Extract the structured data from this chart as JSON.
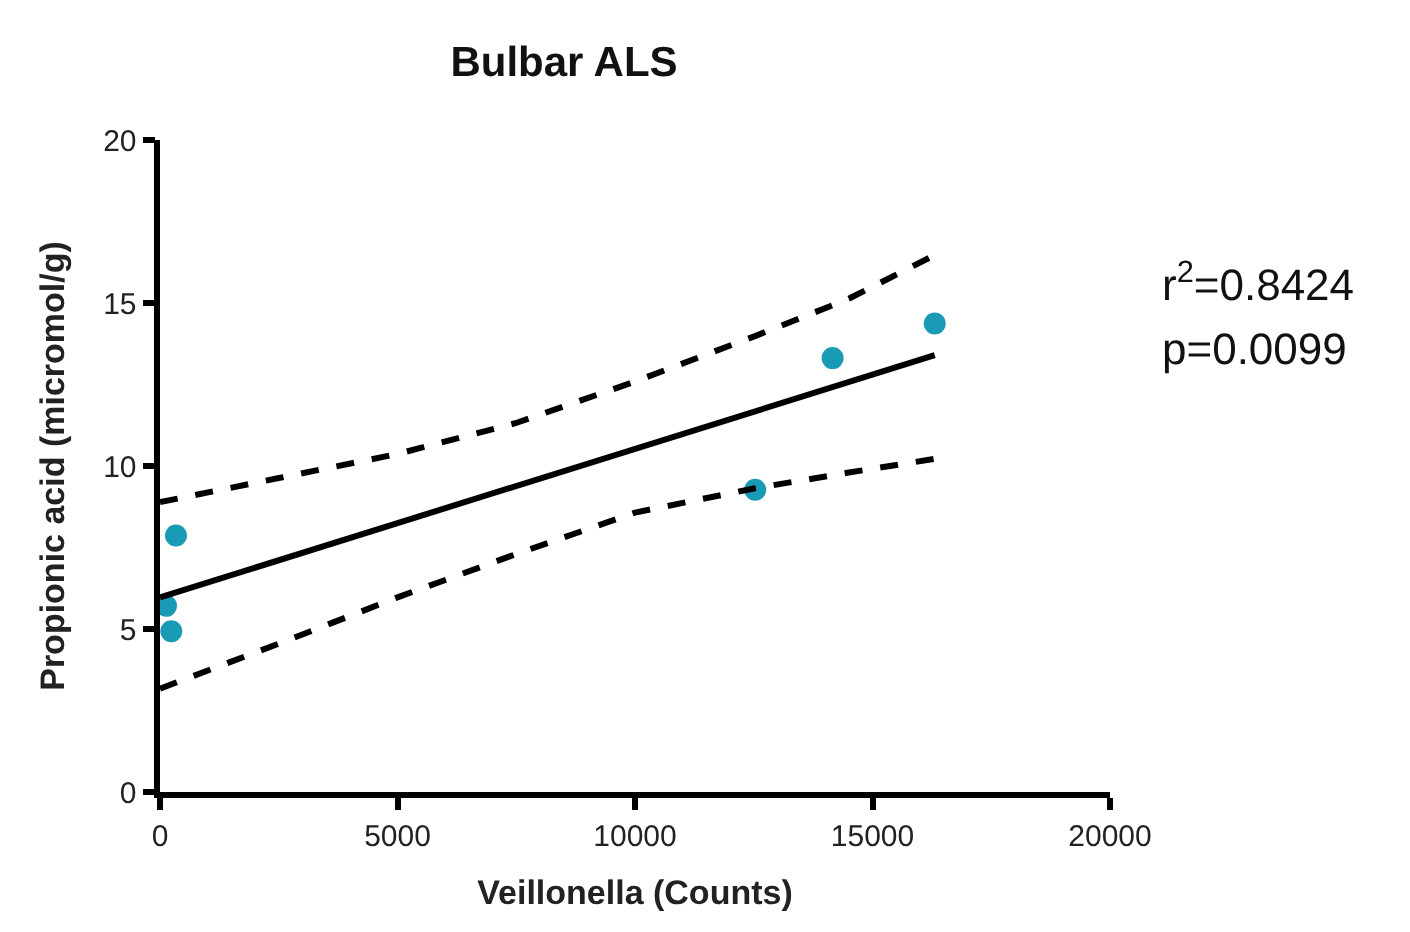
{
  "chart_data": {
    "type": "scatter",
    "title": "Bulbar ALS",
    "xlabel": "Veillonella (Counts)",
    "ylabel": "Propionic acid (micromol/g)",
    "xlim": [
      0,
      20000
    ],
    "xticks": [
      0,
      5000,
      10000,
      15000,
      20000
    ],
    "ylim": [
      0,
      20
    ],
    "yticks": [
      0,
      5,
      10,
      15,
      20
    ],
    "series": [
      {
        "marker": "circle",
        "color": "#1a9bb5",
        "x": [
          126,
          238,
          336,
          12530,
          14160,
          16310
        ],
        "values": [
          5.71,
          4.93,
          7.87,
          9.27,
          13.31,
          14.37
        ]
      },
      {
        "type": "line",
        "marker": "none",
        "line_style": "solid",
        "color": "#000000",
        "x": [
          0,
          16310
        ],
        "values": [
          5.97,
          13.4
        ]
      },
      {
        "type": "line",
        "marker": "none",
        "line_style": "dashed",
        "color": "#000000",
        "x": [
          0,
          2500,
          5000,
          7500,
          10000,
          12500,
          14500,
          16310
        ],
        "values": [
          8.89,
          9.63,
          10.37,
          11.32,
          12.59,
          13.97,
          15.13,
          16.47
        ]
      },
      {
        "type": "line",
        "marker": "none",
        "line_style": "dashed",
        "color": "#000000",
        "x": [
          0,
          2500,
          5000,
          7500,
          10000,
          12500,
          14500,
          16310
        ],
        "values": [
          3.17,
          4.55,
          5.97,
          7.3,
          8.57,
          9.31,
          9.8,
          10.22
        ]
      }
    ],
    "annotations": [
      "r$^{2}$=0.8424",
      "p=0.0099"
    ]
  }
}
